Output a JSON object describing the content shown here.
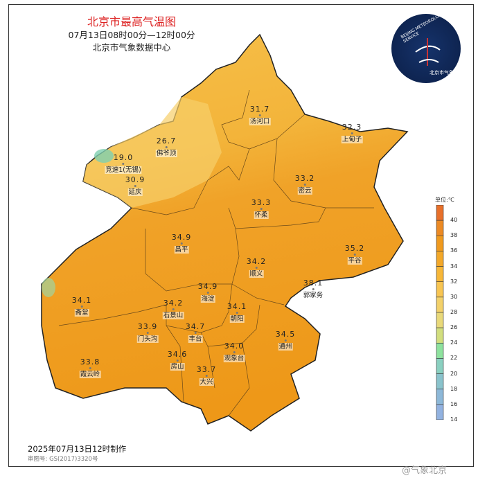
{
  "header": {
    "title": "北京市最高气温图",
    "period": "07月13日08时00分—12时00分",
    "issuer": "北京市气象数据中心"
  },
  "logo": {
    "text_en": "BEIJING METEOROLOGICAL SERVICE",
    "text_cn": "北京市气象局"
  },
  "legend": {
    "unit": "单位:℃",
    "ticks": [
      "40",
      "38",
      "36",
      "34",
      "32",
      "30",
      "28",
      "26",
      "24",
      "22",
      "20",
      "18",
      "16",
      "14"
    ],
    "colors": [
      "#e8702a",
      "#ec8a24",
      "#f09a1e",
      "#f3a829",
      "#f7b738",
      "#f8c552",
      "#f3d16a",
      "#e9d97a",
      "#d2de7e",
      "#8ee29e",
      "#8ad0c0",
      "#8ac3cc",
      "#8db8d8",
      "#92b2e0"
    ]
  },
  "stations": [
    {
      "value": "31.7",
      "name": "汤河口"
    },
    {
      "value": "32.3",
      "name": "上甸子"
    },
    {
      "value": "26.7",
      "name": "佛爷顶"
    },
    {
      "value": "19.0",
      "name": "竞速1(无锡)"
    },
    {
      "value": "30.9",
      "name": "延庆"
    },
    {
      "value": "33.2",
      "name": "密云"
    },
    {
      "value": "33.3",
      "name": "怀柔"
    },
    {
      "value": "34.9",
      "name": "昌平"
    },
    {
      "value": "35.2",
      "name": "平谷"
    },
    {
      "value": "34.2",
      "name": "顺义"
    },
    {
      "value": "38.1",
      "name": "郭家务"
    },
    {
      "value": "34.1",
      "name": "斋堂"
    },
    {
      "value": "34.9",
      "name": "海淀"
    },
    {
      "value": "34.1",
      "name": "朝阳"
    },
    {
      "value": "34.2",
      "name": "石景山"
    },
    {
      "value": "33.9",
      "name": "门头沟"
    },
    {
      "value": "34.7",
      "name": "丰台"
    },
    {
      "value": "34.5",
      "name": "通州"
    },
    {
      "value": "34.0",
      "name": "观象台"
    },
    {
      "value": "34.6",
      "name": "房山"
    },
    {
      "value": "33.7",
      "name": "大兴"
    },
    {
      "value": "33.8",
      "name": "霞云岭"
    }
  ],
  "footer": {
    "made": "2025年07月13日12时制作",
    "approval": "审图号: GS(2017)3320号",
    "watermark": "@气象北京"
  }
}
